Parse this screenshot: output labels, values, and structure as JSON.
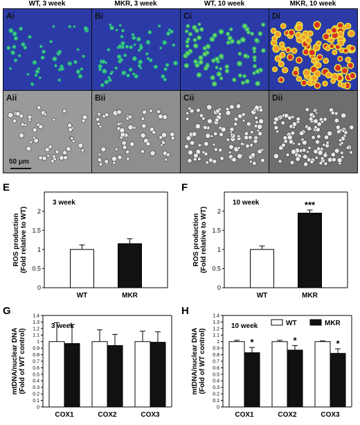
{
  "headers": [
    "WT, 3 week",
    "MKR, 3 week",
    "WT, 10 week",
    "MKR, 10 week"
  ],
  "image_panels": {
    "top": [
      "Ai",
      "Bi",
      "Ci",
      "Di"
    ],
    "bottom": [
      "Aii",
      "Bii",
      "Cii",
      "Dii"
    ],
    "scale_bar": "50 μm"
  },
  "colors": {
    "fluor_bg": "#2b3aa6",
    "bar_black": "#111111",
    "bar_white": "#ffffff"
  },
  "chart_data": [
    {
      "panel": "E",
      "type": "bar",
      "title": "3 week",
      "ylabel": "ROS production",
      "ylabel2": "(Fold relative to WT)",
      "categories": [
        "WT",
        "MKR"
      ],
      "values": [
        1.0,
        1.15
      ],
      "errors": [
        0.12,
        0.13
      ],
      "fills": [
        "white",
        "black"
      ],
      "ylim": [
        0,
        2.5
      ],
      "yticks": [
        "0",
        "0.5",
        "1",
        "1.5",
        "2"
      ],
      "annotations": [
        "",
        ""
      ]
    },
    {
      "panel": "F",
      "type": "bar",
      "title": "10 week",
      "ylabel": "ROS production",
      "ylabel2": "(Fold relative to WT)",
      "categories": [
        "WT",
        "MKR"
      ],
      "values": [
        1.0,
        1.95
      ],
      "errors": [
        0.09,
        0.08
      ],
      "fills": [
        "white",
        "black"
      ],
      "ylim": [
        0,
        2.5
      ],
      "yticks": [
        "0",
        "0.5",
        "1",
        "1.5",
        "2"
      ],
      "annotations": [
        "",
        "***"
      ]
    },
    {
      "panel": "G",
      "type": "bar",
      "title": "3 week",
      "ylabel": "mtDNA/nuclear DNA",
      "ylabel2": "(Fold of WT control)",
      "categories": [
        "COX1",
        "COX2",
        "COX3"
      ],
      "series": [
        {
          "values": [
            1.0,
            1.0,
            1.0
          ],
          "errors": [
            0.29,
            0.18,
            0.16
          ],
          "fill": "white"
        },
        {
          "values": [
            0.97,
            0.94,
            0.99
          ],
          "errors": [
            0.29,
            0.17,
            0.16
          ],
          "fill": "black"
        }
      ],
      "ylim": [
        0,
        1.4
      ],
      "yticks": [
        "0",
        "0.1",
        "0.2",
        "0.3",
        "0.4",
        "0.5",
        "0.6",
        "0.7",
        "0.8",
        "0.9",
        "1",
        "1.1",
        "1.2",
        "1.3",
        "1.4"
      ],
      "annotations": [
        "",
        "",
        ""
      ],
      "legend": []
    },
    {
      "panel": "H",
      "type": "bar",
      "title": "10 week",
      "ylabel": "mtDNA/nuclear DNA",
      "ylabel2": "(Fold of WT control)",
      "categories": [
        "COX1",
        "COX2",
        "COX3"
      ],
      "series": [
        {
          "name": "WT",
          "values": [
            1.0,
            1.0,
            1.0
          ],
          "errors": [
            0.02,
            0.02,
            0.01
          ],
          "fill": "white"
        },
        {
          "name": "MKR",
          "values": [
            0.83,
            0.87,
            0.82
          ],
          "errors": [
            0.08,
            0.07,
            0.07
          ],
          "fill": "black"
        }
      ],
      "ylim": [
        0,
        1.4
      ],
      "yticks": [
        "0",
        "0.1",
        "0.2",
        "0.3",
        "0.4",
        "0.5",
        "0.6",
        "0.7",
        "0.8",
        "0.9",
        "1",
        "1.1",
        "1.2",
        "1.3",
        "1.4"
      ],
      "annotations": [
        "*",
        "*",
        "*"
      ],
      "legend": [
        "WT",
        "MKR"
      ]
    }
  ]
}
